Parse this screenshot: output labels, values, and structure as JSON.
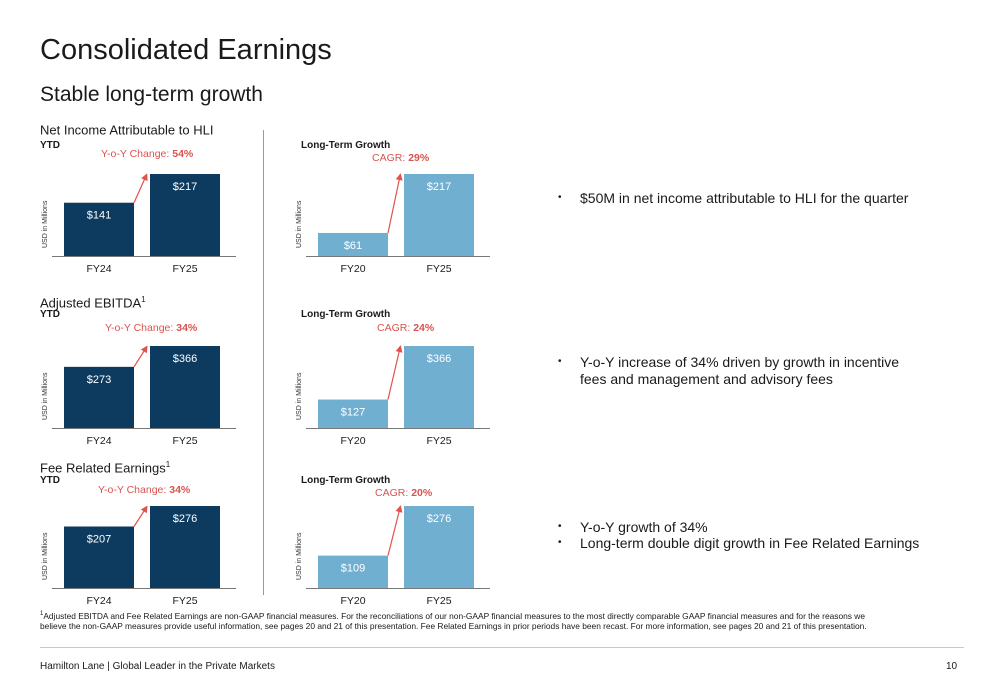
{
  "title": "Consolidated Earnings",
  "subtitle": "Stable long-term growth",
  "sections": [
    {
      "title": "Net Income Attributable to HLI",
      "sup": "",
      "ytd": "YTD",
      "ltg": "Long-Term Growth"
    },
    {
      "title": "Adjusted EBITDA",
      "sup": "1",
      "ytd": "YTD",
      "ltg": "Long-Term Growth"
    },
    {
      "title": "Fee Related Earnings",
      "sup": "1",
      "ytd": "YTD",
      "ltg": "Long-Term Growth"
    }
  ],
  "colors": {
    "ytd_bar": "#0d3b60",
    "ltg_bar": "#71afd1",
    "arrow": "#e0534a"
  },
  "chart_data": [
    {
      "type": "bar",
      "id": "ni-ytd",
      "categories": [
        "FY24",
        "FY25"
      ],
      "values": [
        141,
        217
      ],
      "value_labels": [
        "$141",
        "$217"
      ],
      "ylabel": "USD in Millions",
      "change_label": "Y-o-Y Change:",
      "change_value": "54%"
    },
    {
      "type": "bar",
      "id": "ni-ltg",
      "categories": [
        "FY20",
        "FY25"
      ],
      "values": [
        61,
        217
      ],
      "value_labels": [
        "$61",
        "$217"
      ],
      "ylabel": "USD in Millions",
      "change_label": "CAGR:",
      "change_value": "29%"
    },
    {
      "type": "bar",
      "id": "ebitda-ytd",
      "categories": [
        "FY24",
        "FY25"
      ],
      "values": [
        273,
        366
      ],
      "value_labels": [
        "$273",
        "$366"
      ],
      "ylabel": "USD in Millions",
      "change_label": "Y-o-Y Change:",
      "change_value": "34%"
    },
    {
      "type": "bar",
      "id": "ebitda-ltg",
      "categories": [
        "FY20",
        "FY25"
      ],
      "values": [
        127,
        366
      ],
      "value_labels": [
        "$127",
        "$366"
      ],
      "ylabel": "USD in Millions",
      "change_label": "CAGR:",
      "change_value": "24%"
    },
    {
      "type": "bar",
      "id": "fre-ytd",
      "categories": [
        "FY24",
        "FY25"
      ],
      "values": [
        207,
        276
      ],
      "value_labels": [
        "$207",
        "$276"
      ],
      "ylabel": "USD in Millions",
      "change_label": "Y-o-Y Change:",
      "change_value": "34%"
    },
    {
      "type": "bar",
      "id": "fre-ltg",
      "categories": [
        "FY20",
        "FY25"
      ],
      "values": [
        109,
        276
      ],
      "value_labels": [
        "$109",
        "$276"
      ],
      "ylabel": "USD in Millions",
      "change_label": "CAGR:",
      "change_value": "20%"
    }
  ],
  "bullets": [
    "$50M in net income attributable to HLI for the quarter",
    "Y-o-Y increase of 34% driven by growth in incentive fees and management and advisory fees",
    "Y-o-Y growth of 34%",
    "Long-term double digit growth in Fee Related Earnings"
  ],
  "bullet_symbol": "•",
  "footnote": {
    "sup": "1",
    "text": "Adjusted EBITDA and Fee Related Earnings are non-GAAP financial measures. For the reconciliations of our non-GAAP financial measures to the most directly comparable GAAP financial measures and for the reasons we believe the non-GAAP measures provide useful information, see pages 20 and 21 of this presentation. Fee Related Earnings in prior periods have been recast. For more information, see pages 20 and 21 of this presentation."
  },
  "footer": {
    "left": "Hamilton Lane  |  Global Leader in the Private Markets",
    "page": "10"
  }
}
